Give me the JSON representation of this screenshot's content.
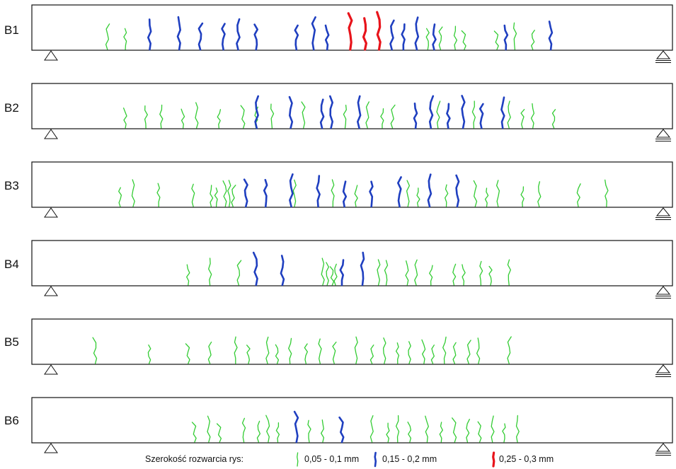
{
  "beams": [
    {
      "label": "B1",
      "cracks": {
        "green": [
          0.118,
          0.146,
          0.618,
          0.638,
          0.661,
          0.675,
          0.726,
          0.754,
          0.782
        ],
        "blue": [
          0.184,
          0.23,
          0.263,
          0.299,
          0.322,
          0.35,
          0.413,
          0.44,
          0.461,
          0.562,
          0.58,
          0.601,
          0.628,
          0.74,
          0.81
        ],
        "red": [
          0.497,
          0.52,
          0.542
        ]
      }
    },
    {
      "label": "B2",
      "cracks": {
        "green": [
          0.146,
          0.178,
          0.202,
          0.236,
          0.257,
          0.292,
          0.33,
          0.35,
          0.375,
          0.424,
          0.489,
          0.524,
          0.547,
          0.563,
          0.634,
          0.69,
          0.745,
          0.766,
          0.782,
          0.815
        ],
        "blue": [
          0.351,
          0.404,
          0.453,
          0.467,
          0.511,
          0.599,
          0.623,
          0.65,
          0.673,
          0.702,
          0.735
        ]
      }
    },
    {
      "label": "B3",
      "cracks": {
        "green": [
          0.138,
          0.158,
          0.198,
          0.252,
          0.28,
          0.288,
          0.302,
          0.308,
          0.314,
          0.41,
          0.47,
          0.506,
          0.587,
          0.603,
          0.647,
          0.692,
          0.71,
          0.728,
          0.766,
          0.792,
          0.853,
          0.897
        ],
        "blue": [
          0.334,
          0.365,
          0.405,
          0.447,
          0.488,
          0.53,
          0.574,
          0.621,
          0.664
        ]
      }
    },
    {
      "label": "B4",
      "cracks": {
        "green": [
          0.244,
          0.278,
          0.323,
          0.454,
          0.461,
          0.469,
          0.474,
          0.541,
          0.553,
          0.586,
          0.6,
          0.623,
          0.659,
          0.674,
          0.701,
          0.716,
          0.745
        ],
        "blue": [
          0.35,
          0.391,
          0.484,
          0.516
        ]
      }
    },
    {
      "label": "B5",
      "cracks": {
        "green": [
          0.099,
          0.183,
          0.244,
          0.278,
          0.318,
          0.338,
          0.368,
          0.383,
          0.403,
          0.428,
          0.45,
          0.472,
          0.506,
          0.531,
          0.55,
          0.571,
          0.589,
          0.612,
          0.626,
          0.644,
          0.66,
          0.682,
          0.697,
          0.745
        ]
      }
    },
    {
      "label": "B6",
      "cracks": {
        "green": [
          0.254,
          0.276,
          0.293,
          0.331,
          0.354,
          0.369,
          0.384,
          0.433,
          0.454,
          0.531,
          0.556,
          0.571,
          0.59,
          0.617,
          0.639,
          0.66,
          0.68,
          0.699,
          0.719,
          0.737,
          0.758
        ],
        "blue": [
          0.413,
          0.484
        ]
      }
    }
  ],
  "crack_colors": {
    "green": "#33cc33",
    "blue": "#1f3fc0",
    "red": "#e8141b"
  },
  "legend": {
    "title": "Szerokość rozwarcia rys:",
    "items": [
      {
        "key": "green",
        "label": "0,05 - 0,1 mm"
      },
      {
        "key": "blue",
        "label": "0,15 - 0,2 mm"
      },
      {
        "key": "red",
        "label": "0,25 - 0,3 mm"
      }
    ]
  }
}
